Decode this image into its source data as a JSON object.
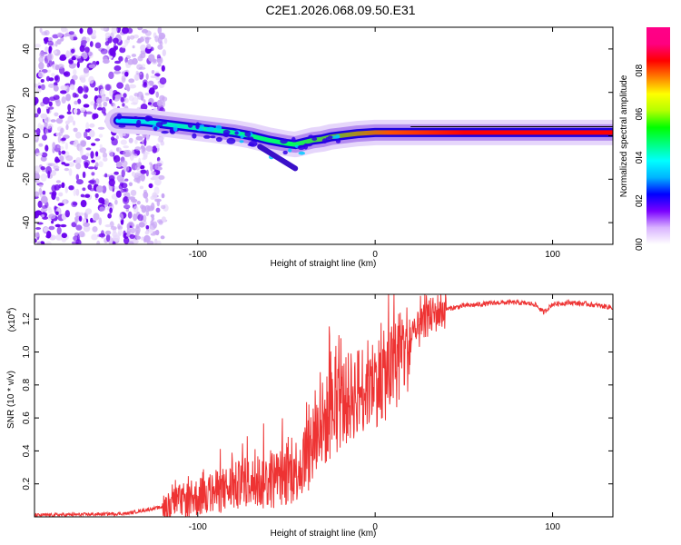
{
  "title": "C2E1.2026.068.09.50.E31",
  "chart_data": [
    {
      "type": "heatmap",
      "name": "spectrogram",
      "xlabel": "Height of straight line (km)",
      "ylabel": "Frequency (Hz)",
      "xlim": [
        -192,
        134
      ],
      "ylim": [
        -50,
        50
      ],
      "xticks": [
        -100,
        0,
        100
      ],
      "xtick_labels": [
        "-100",
        "0",
        "100"
      ],
      "yticks": [
        -40,
        -20,
        0,
        20,
        40
      ],
      "ytick_labels": [
        "-40",
        "-20",
        "0",
        "20",
        "40"
      ],
      "colorbar": {
        "label": "Normalized spectral amplitude",
        "range": [
          0,
          1
        ],
        "ticks": [
          0.0,
          0.2,
          0.4,
          0.6,
          0.8
        ],
        "tick_labels": [
          "0.0",
          "0.2",
          "0.4",
          "0.6",
          "0.8"
        ],
        "colors": [
          "#ffffff",
          "#d9b3ff",
          "#7a00ff",
          "#0000ff",
          "#00b4ff",
          "#00ffff",
          "#00ff80",
          "#00ff00",
          "#b4ff00",
          "#ffff00",
          "#ff8000",
          "#ff0000",
          "#ff0080",
          "#ff0088"
        ]
      },
      "ridge_line": {
        "name": "dominant frequency",
        "x": [
          -145,
          -130,
          -115,
          -100,
          -90,
          -80,
          -70,
          -60,
          -50,
          -45,
          -40,
          -35,
          -30,
          -25,
          -20,
          -10,
          0,
          10,
          20,
          30,
          40,
          60,
          80,
          100,
          120,
          134
        ],
        "y": [
          7,
          6.5,
          5,
          3.5,
          2.5,
          1.5,
          0,
          -2,
          -3.5,
          -4,
          -3,
          -2,
          -1.5,
          -0.5,
          0,
          1,
          1.5,
          1.5,
          1.5,
          1.5,
          1.5,
          1.5,
          1.5,
          1.5,
          1.5,
          1.5
        ]
      },
      "noise_region": {
        "x_range": [
          -192,
          -118
        ],
        "y_range": [
          -50,
          50
        ]
      }
    },
    {
      "type": "line",
      "name": "snr",
      "xlabel": "Height of straight line (km)",
      "ylabel": "SNR (10 * v/v)",
      "y_multiplier": "(x10",
      "y_multiplier_exp": "4",
      "y_multiplier_close": ")",
      "xlim": [
        -192,
        134
      ],
      "ylim": [
        0,
        1.35
      ],
      "xticks": [
        -100,
        0,
        100
      ],
      "xtick_labels": [
        "-100",
        "0",
        "100"
      ],
      "yticks": [
        0.2,
        0.4,
        0.6,
        0.8,
        1.0,
        1.2
      ],
      "ytick_labels": [
        "0.2",
        "0.4",
        "0.6",
        "0.8",
        "1.0",
        "1.2"
      ],
      "series": [
        {
          "name": "SNR",
          "color": "#ee3333",
          "x": [
            -192,
            -160,
            -140,
            -130,
            -125,
            -120,
            -110,
            -100,
            -90,
            -80,
            -70,
            -60,
            -50,
            -45,
            -40,
            -35,
            -30,
            -25,
            -20,
            -15,
            -10,
            -5,
            0,
            5,
            10,
            15,
            20,
            25,
            30,
            35,
            40,
            45,
            50,
            60,
            70,
            80,
            90,
            95,
            100,
            110,
            120,
            134
          ],
          "y": [
            0.01,
            0.015,
            0.02,
            0.04,
            0.05,
            0.06,
            0.09,
            0.12,
            0.15,
            0.18,
            0.2,
            0.22,
            0.25,
            0.28,
            0.35,
            0.45,
            0.55,
            0.62,
            0.68,
            0.72,
            0.76,
            0.8,
            0.82,
            0.85,
            0.9,
            0.98,
            1.06,
            1.14,
            1.2,
            1.24,
            1.26,
            1.27,
            1.28,
            1.29,
            1.3,
            1.3,
            1.29,
            1.24,
            1.29,
            1.3,
            1.29,
            1.27
          ]
        }
      ]
    }
  ]
}
